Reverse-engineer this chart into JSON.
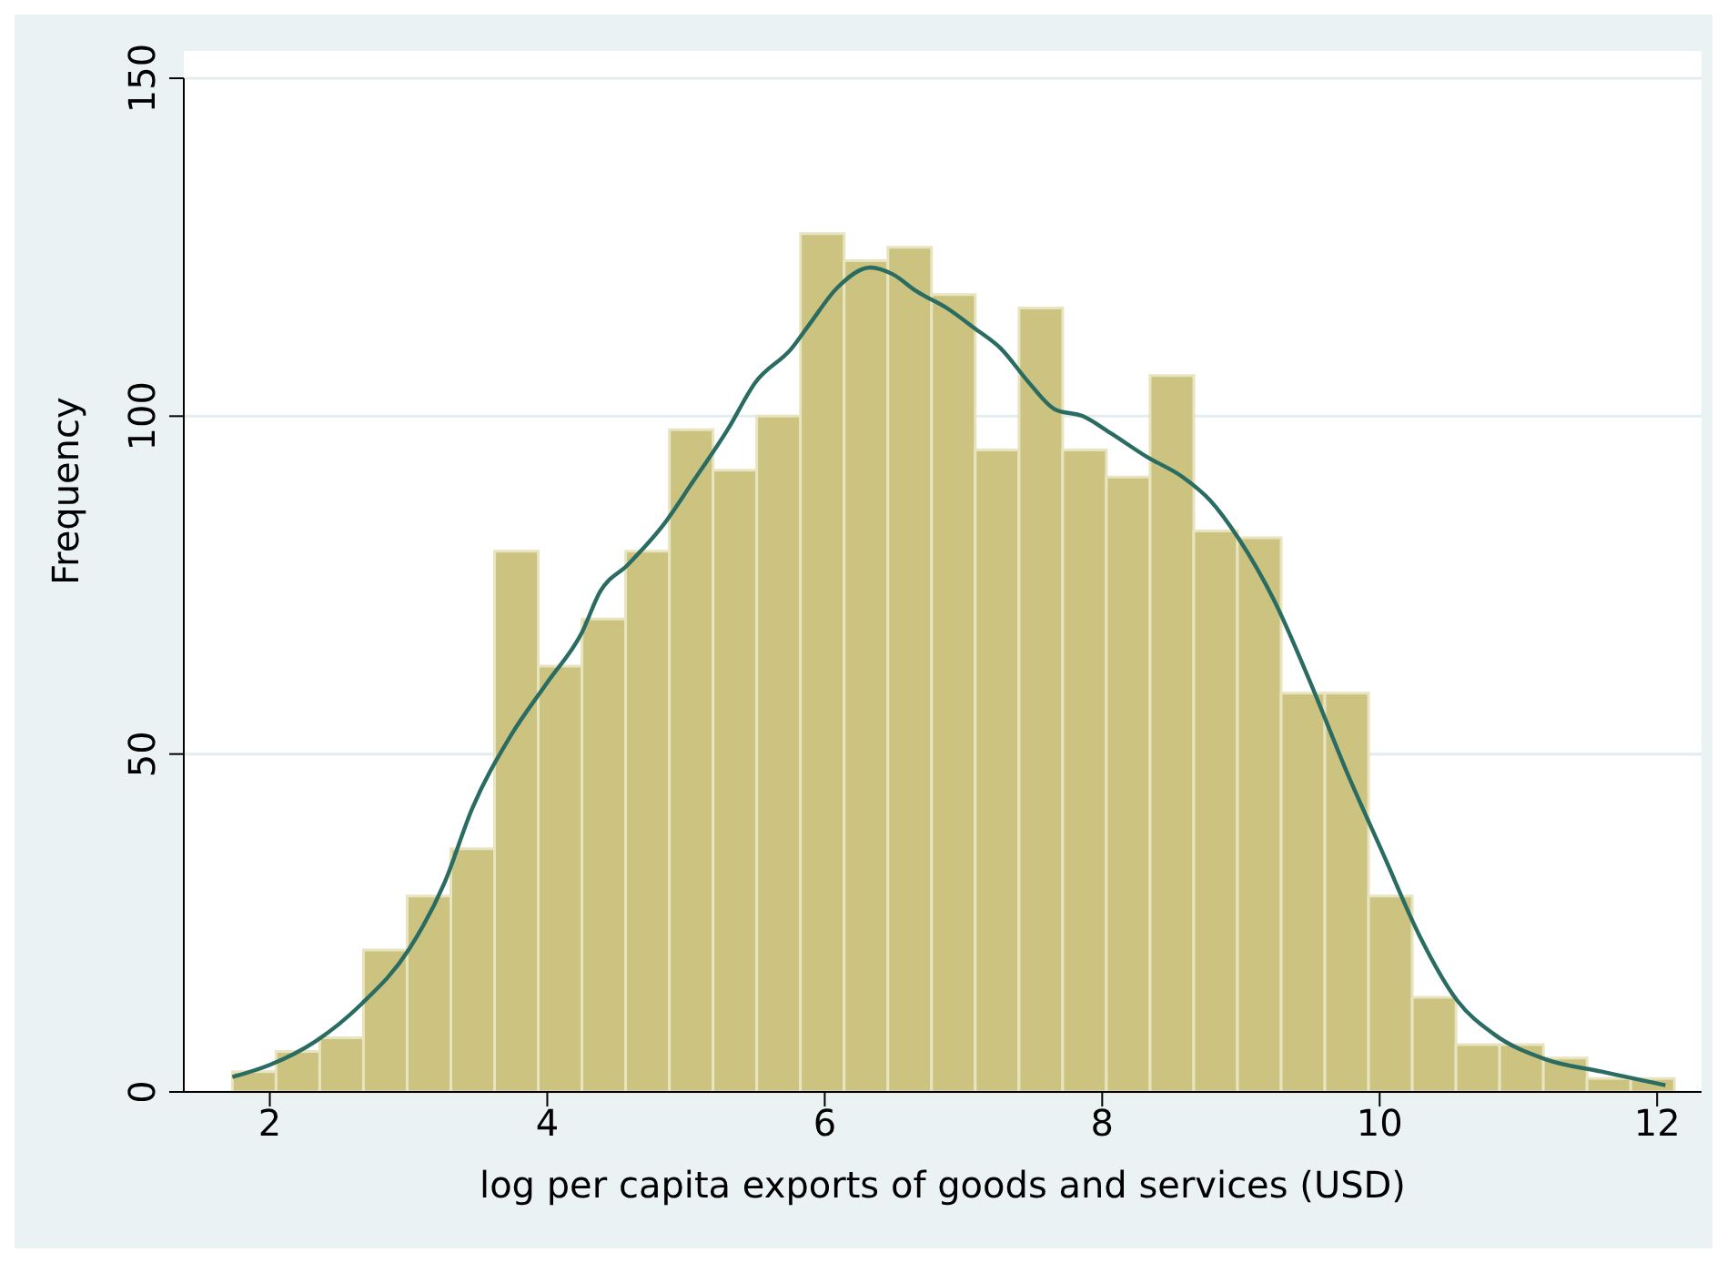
{
  "chart_data": {
    "type": "histogram",
    "xlabel": "log per capita exports of goods and services (USD)",
    "ylabel": "Frequency",
    "bins": [
      1.73,
      2.045,
      2.36,
      2.675,
      2.99,
      3.305,
      3.62,
      3.935,
      4.25,
      4.565,
      4.88,
      5.195,
      5.51,
      5.825,
      6.14,
      6.455,
      6.77,
      7.085,
      7.4,
      7.715,
      8.03,
      8.345,
      8.66,
      8.975,
      9.29,
      9.605,
      9.92,
      10.235,
      10.55,
      10.865,
      11.18,
      11.495,
      11.81,
      12.125
    ],
    "series": [
      {
        "color": "#cbc37f",
        "values": [
          3,
          6,
          8,
          21,
          29,
          36,
          80,
          63,
          70,
          80,
          98,
          92,
          100,
          127,
          123,
          125,
          118,
          95,
          116,
          95,
          91,
          106,
          83,
          82,
          59,
          59,
          29,
          14,
          7,
          7,
          5,
          2,
          2
        ]
      },
      {
        "type": "line",
        "color": "#2a6b62",
        "x": [
          1.73,
          2.0,
          2.33,
          2.66,
          3.0,
          3.26,
          3.46,
          3.73,
          4.0,
          4.25,
          4.38,
          4.58,
          4.84,
          5.04,
          5.3,
          5.5,
          5.76,
          5.89,
          6.09,
          6.33,
          6.49,
          6.66,
          6.88,
          7.08,
          7.27,
          7.47,
          7.66,
          7.86,
          8.06,
          8.32,
          8.58,
          8.78,
          8.98,
          9.24,
          9.5,
          9.77,
          10.03,
          10.29,
          10.56,
          10.82,
          11.2,
          11.6,
          12.06
        ],
        "values": [
          2.2,
          4,
          7.5,
          13,
          21,
          31,
          42,
          52.5,
          60.6,
          68,
          74,
          78,
          84,
          90,
          98,
          105,
          110,
          113.6,
          119,
          122,
          121,
          118.5,
          116,
          113,
          110,
          105,
          101,
          100,
          97.5,
          94,
          91,
          87.5,
          82,
          72.7,
          60.6,
          47,
          35,
          23,
          13.5,
          8.6,
          4.8,
          3,
          1
        ]
      }
    ],
    "xlim": [
      1.38,
      12.32
    ],
    "xticks": [
      2,
      4,
      6,
      8,
      10,
      12
    ],
    "ylim": [
      0,
      150
    ],
    "yticks": [
      0,
      50,
      100,
      150
    ],
    "grid": "y"
  }
}
